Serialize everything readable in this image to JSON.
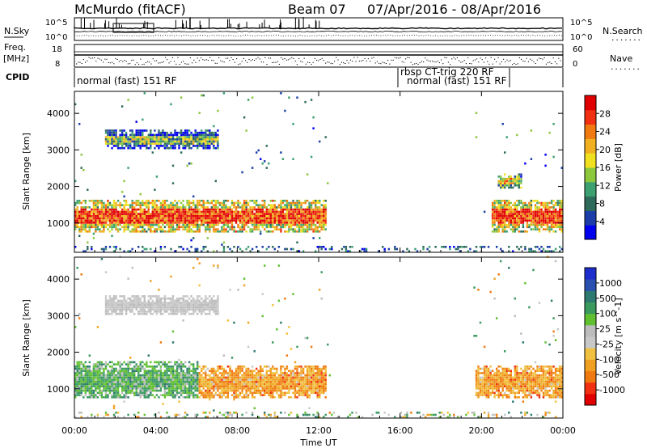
{
  "header": {
    "station": "McMurdo (fitACF)",
    "beam": "Beam 07",
    "date_range": "07/Apr/2016 - 08/Apr/2016"
  },
  "left_labels": {
    "nsky": "N.Sky",
    "freq": "Freq.",
    "freq_unit": "[MHz]",
    "cpid": "CPID"
  },
  "right_labels": {
    "nsearch": "N.Search",
    "nave": "Nave",
    "dots": "......."
  },
  "strip_ticks": {
    "noise_left": [
      "10^5",
      "10^0"
    ],
    "noise_right": [
      "10^5",
      "10^0"
    ],
    "freq_left": [
      "18",
      "8"
    ],
    "freq_right": [
      "60",
      "0"
    ]
  },
  "cpid_entries": [
    {
      "text": "normal (fast) 151 RF",
      "pos": "left"
    },
    {
      "text": "rbsp CT-trig 220 RF",
      "pos": "right-upper"
    },
    {
      "text": "normal (fast) 151 RF",
      "pos": "right-lower"
    }
  ],
  "x_axis": {
    "title": "Time UT",
    "ticks": [
      "00:00",
      "04:00",
      "08:00",
      "12:00",
      "16:00",
      "20:00",
      "00:00"
    ],
    "range_hours": [
      0,
      24
    ]
  },
  "chart_data": [
    {
      "type": "heatmap",
      "ylabel": "Slant Range [km]",
      "yticks": [
        1000,
        2000,
        3000,
        4000
      ],
      "ylim": [
        200,
        4600
      ],
      "colorbar": {
        "title": "Power [dB]",
        "ticks": [
          28,
          24,
          20,
          16,
          12,
          8,
          4
        ],
        "colors": [
          "#0000ee",
          "#1c3ea8",
          "#2e6b5a",
          "#3ca070",
          "#8cc83c",
          "#f0e020",
          "#f0b020",
          "#f07a10",
          "#f03010",
          "#e00000"
        ]
      },
      "regions": [
        {
          "t0": 0.0,
          "t1": 12.3,
          "r0": 700,
          "r1": 1600,
          "level": 0.75
        },
        {
          "t0": 20.5,
          "t1": 24.0,
          "r0": 700,
          "r1": 1600,
          "level": 0.75
        },
        {
          "t0": 1.5,
          "t1": 7.0,
          "r0": 3000,
          "r1": 3500,
          "level": 0.25
        },
        {
          "t0": 20.8,
          "t1": 22.0,
          "r0": 1900,
          "r1": 2300,
          "level": 0.5
        }
      ]
    },
    {
      "type": "heatmap",
      "ylabel": "Slant Range [km]",
      "yticks": [
        1000,
        2000,
        3000,
        4000
      ],
      "ylim": [
        200,
        4600
      ],
      "colorbar": {
        "title": "Velocity [m s^-1]",
        "ticks": [
          1000,
          500,
          100,
          25,
          -25,
          -100,
          -500,
          -1000
        ],
        "colors": [
          "#e00000",
          "#f03010",
          "#f07a10",
          "#f0a020",
          "#f0c040",
          "#c8c8c8",
          "#bcbcbc",
          "#60c030",
          "#3a9a60",
          "#2e7a70",
          "#2a50b0",
          "#1e2ecc"
        ]
      },
      "regions": [
        {
          "t0": 0.0,
          "t1": 6.0,
          "r0": 700,
          "r1": 1700,
          "velocity": 150
        },
        {
          "t0": 6.0,
          "t1": 12.3,
          "r0": 700,
          "r1": 1600,
          "velocity": -300
        },
        {
          "t0": 1.5,
          "t1": 7.0,
          "r0": 3000,
          "r1": 3500,
          "velocity": 0
        },
        {
          "t0": 19.7,
          "t1": 24.0,
          "r0": 700,
          "r1": 1600,
          "velocity": -300
        }
      ]
    }
  ]
}
